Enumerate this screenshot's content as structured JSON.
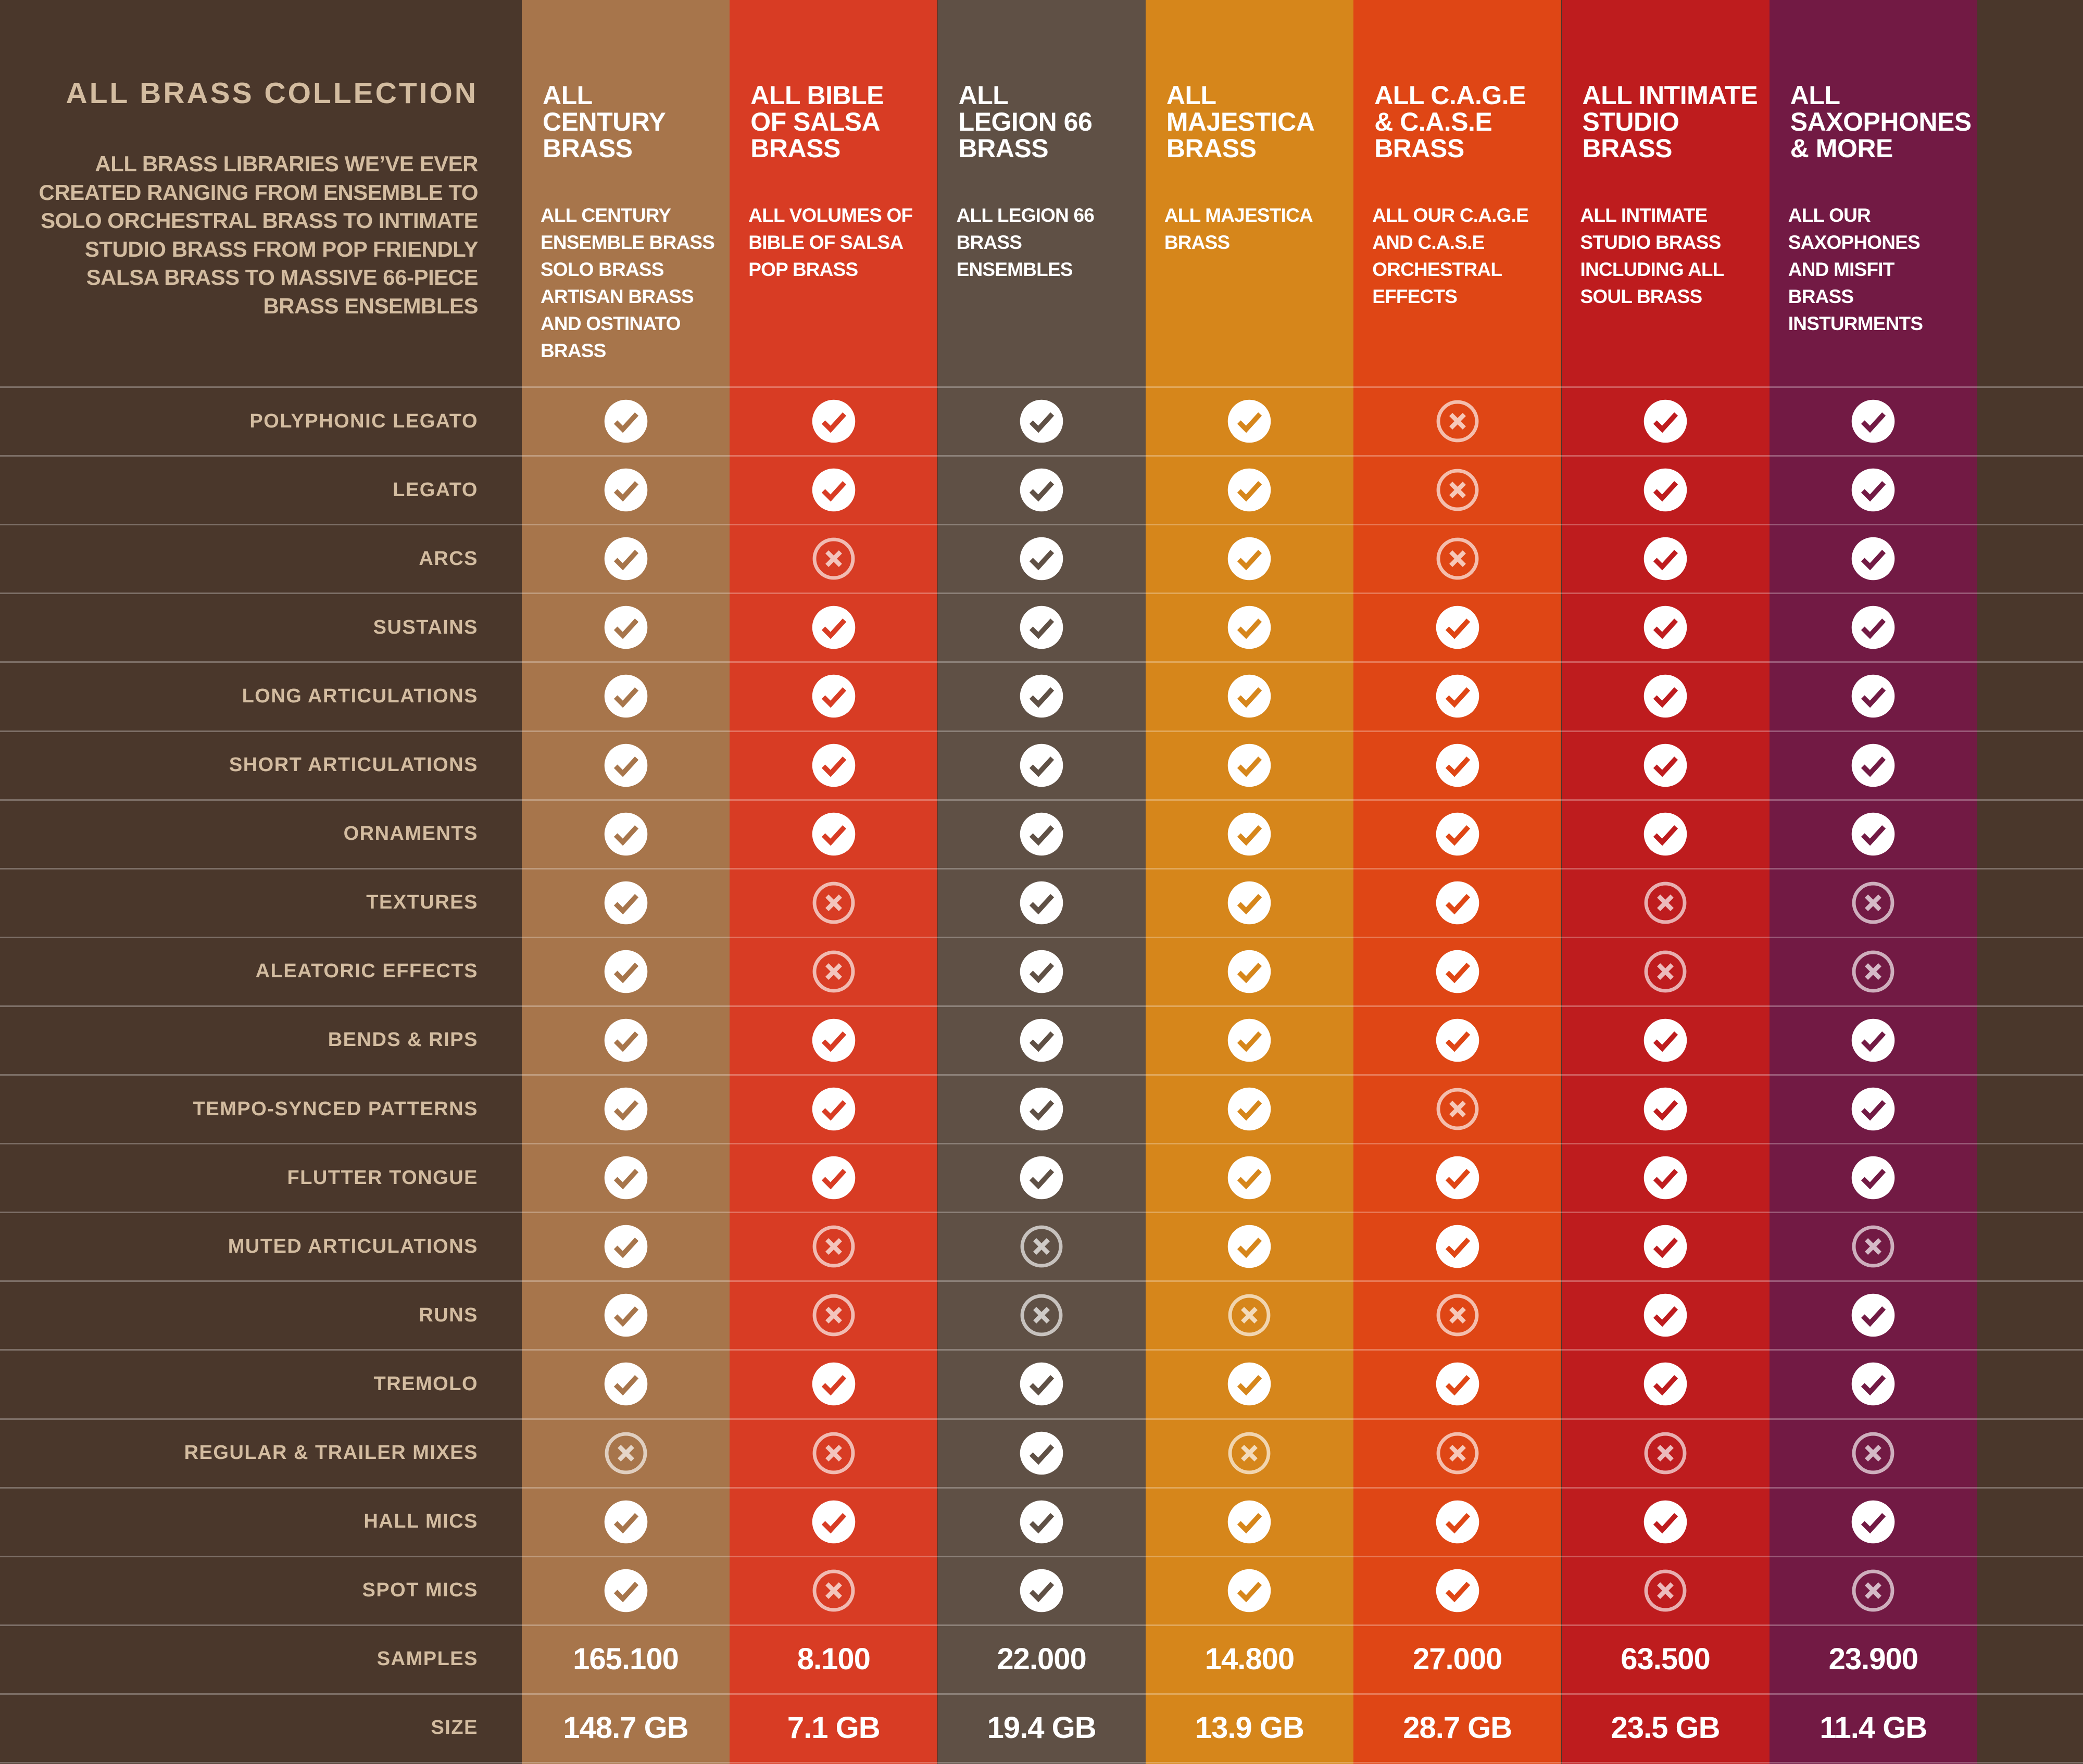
{
  "header": {
    "title": "ALL BRASS COLLECTION",
    "description": "ALL BRASS LIBRARIES WE’VE EVER CREATED RANGING FROM ENSEMBLE TO SOLO ORCHESTRAL BRASS TO INTIMATE STUDIO BRASS FROM POP FRIENDLY SALSA BRASS TO MASSIVE 66-PIECE BRASS ENSEMBLES"
  },
  "colors": {
    "background": "#4a372b",
    "label_text": "#d3bca0"
  },
  "icons": {
    "included": "check-circle-icon",
    "not_included": "x-circle-icon"
  },
  "columns": [
    {
      "title": "ALL CENTURY BRASS",
      "title_lines": [
        "ALL",
        "CENTURY",
        "BRASS"
      ],
      "description_lines": [
        "ALL CENTURY",
        "ENSEMBLE BRASS",
        "SOLO BRASS",
        "ARTISAN BRASS",
        "AND OSTINATO",
        "BRASS"
      ],
      "color": "#a7754b",
      "samples": "165.100",
      "size": "148.7 GB"
    },
    {
      "title": "ALL BIBLE OF SALSA BRASS",
      "title_lines": [
        "ALL BIBLE",
        "OF SALSA",
        "BRASS"
      ],
      "description_lines": [
        "ALL VOLUMES OF",
        "BIBLE OF SALSA",
        "POP BRASS"
      ],
      "color": "#d83c24",
      "samples": "8.100",
      "size": "7.1 GB"
    },
    {
      "title": "ALL LEGION 66 BRASS",
      "title_lines": [
        "ALL",
        "LEGION 66",
        "BRASS"
      ],
      "description_lines": [
        "ALL LEGION 66",
        "BRASS",
        "ENSEMBLES"
      ],
      "color": "#5f5045",
      "samples": "22.000",
      "size": "19.4 GB"
    },
    {
      "title": "ALL MAJESTICA BRASS",
      "title_lines": [
        "ALL",
        "MAJESTICA",
        "BRASS"
      ],
      "description_lines": [
        "ALL MAJESTICA",
        "BRASS"
      ],
      "color": "#d6861b",
      "samples": "14.800",
      "size": "13.9 GB"
    },
    {
      "title": "ALL C.A.G.E & C.A.S.E BRASS",
      "title_lines": [
        "ALL C.A.G.E",
        "& C.A.S.E",
        "BRASS"
      ],
      "description_lines": [
        "ALL OUR C.A.G.E",
        "AND C.A.S.E",
        "ORCHESTRAL",
        "EFFECTS"
      ],
      "color": "#df4615",
      "samples": "27.000",
      "size": "28.7 GB"
    },
    {
      "title": "ALL INTIMATE STUDIO BRASS",
      "title_lines": [
        "ALL INTIMATE",
        "STUDIO",
        "BRASS"
      ],
      "description_lines": [
        "ALL INTIMATE",
        "STUDIO BRASS",
        "INCLUDING ALL",
        "SOUL BRASS"
      ],
      "color": "#be1c1e",
      "samples": "63.500",
      "size": "23.5 GB"
    },
    {
      "title": "ALL SAXOPHONES & MORE",
      "title_lines": [
        "ALL",
        "SAXOPHONES",
        "& MORE"
      ],
      "description_lines": [
        "ALL OUR",
        "SAXOPHONES",
        "AND MISFIT",
        "BRASS",
        "INSTURMENTS"
      ],
      "color": "#721a44",
      "samples": "23.900",
      "size": "11.4 GB"
    }
  ],
  "features": [
    {
      "label": "POLYPHONIC LEGATO",
      "values": [
        true,
        true,
        true,
        true,
        false,
        true,
        true
      ]
    },
    {
      "label": "LEGATO",
      "values": [
        true,
        true,
        true,
        true,
        false,
        true,
        true
      ]
    },
    {
      "label": "ARCS",
      "values": [
        true,
        false,
        true,
        true,
        false,
        true,
        true
      ]
    },
    {
      "label": "SUSTAINS",
      "values": [
        true,
        true,
        true,
        true,
        true,
        true,
        true
      ]
    },
    {
      "label": "LONG ARTICULATIONS",
      "values": [
        true,
        true,
        true,
        true,
        true,
        true,
        true
      ]
    },
    {
      "label": "SHORT ARTICULATIONS",
      "values": [
        true,
        true,
        true,
        true,
        true,
        true,
        true
      ]
    },
    {
      "label": "ORNAMENTS",
      "values": [
        true,
        true,
        true,
        true,
        true,
        true,
        true
      ]
    },
    {
      "label": "TEXTURES",
      "values": [
        true,
        false,
        true,
        true,
        true,
        false,
        false
      ]
    },
    {
      "label": "ALEATORIC EFFECTS",
      "values": [
        true,
        false,
        true,
        true,
        true,
        false,
        false
      ]
    },
    {
      "label": "BENDS & RIPS",
      "values": [
        true,
        true,
        true,
        true,
        true,
        true,
        true
      ]
    },
    {
      "label": "TEMPO-SYNCED PATTERNS",
      "values": [
        true,
        true,
        true,
        true,
        false,
        true,
        true
      ]
    },
    {
      "label": "FLUTTER TONGUE",
      "values": [
        true,
        true,
        true,
        true,
        true,
        true,
        true
      ]
    },
    {
      "label": "MUTED ARTICULATIONS",
      "values": [
        true,
        false,
        false,
        true,
        true,
        true,
        false
      ]
    },
    {
      "label": "RUNS",
      "values": [
        true,
        false,
        false,
        false,
        false,
        true,
        true
      ]
    },
    {
      "label": "TREMOLO",
      "values": [
        true,
        true,
        true,
        true,
        true,
        true,
        true
      ]
    },
    {
      "label": "REGULAR & TRAILER MIXES",
      "values": [
        false,
        false,
        true,
        false,
        false,
        false,
        false
      ]
    },
    {
      "label": "HALL MICS",
      "values": [
        true,
        true,
        true,
        true,
        true,
        true,
        true
      ]
    },
    {
      "label": "SPOT MICS",
      "values": [
        true,
        false,
        true,
        true,
        true,
        false,
        false
      ]
    }
  ],
  "summary_rows": {
    "samples_label": "SAMPLES",
    "size_label": "SIZE"
  }
}
